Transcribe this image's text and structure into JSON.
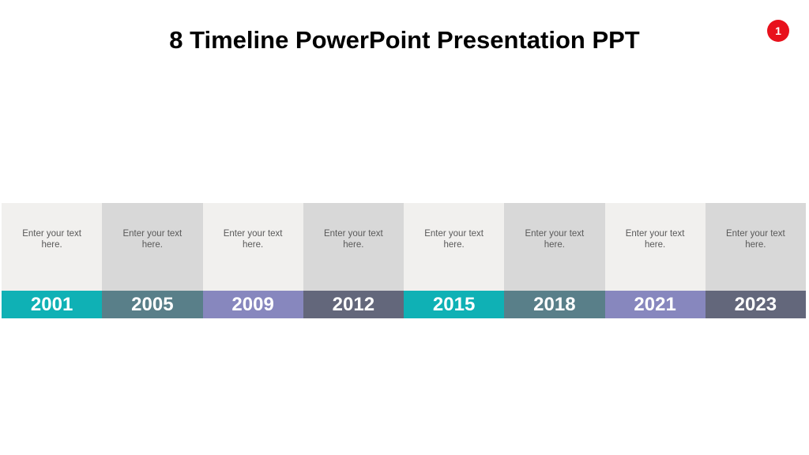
{
  "slide": {
    "title": "8 Timeline PowerPoint Presentation PPT",
    "badge": {
      "label": "1",
      "color": "#e8111c"
    }
  },
  "palette": {
    "teal": "#0fb1b5",
    "slate_teal": "#597f89",
    "purple": "#8787be",
    "dark_slate": "#63677b",
    "body_light": "#f1f0ee",
    "body_dark": "#d8d8d8",
    "placeholder_text": "#595959"
  },
  "timeline": {
    "items": [
      {
        "year": "2001",
        "text": "Enter your text here.",
        "bar_color": "#0fb1b5",
        "body_color": "#f1f0ee"
      },
      {
        "year": "2005",
        "text": "Enter your text here.",
        "bar_color": "#597f89",
        "body_color": "#d8d8d8"
      },
      {
        "year": "2009",
        "text": "Enter your text here.",
        "bar_color": "#8787be",
        "body_color": "#f1f0ee"
      },
      {
        "year": "2012",
        "text": "Enter your text here.",
        "bar_color": "#63677b",
        "body_color": "#d8d8d8"
      },
      {
        "year": "2015",
        "text": "Enter your text here.",
        "bar_color": "#0fb1b5",
        "body_color": "#f1f0ee"
      },
      {
        "year": "2018",
        "text": "Enter your text here.",
        "bar_color": "#597f89",
        "body_color": "#d8d8d8"
      },
      {
        "year": "2021",
        "text": "Enter your text here.",
        "bar_color": "#8787be",
        "body_color": "#f1f0ee"
      },
      {
        "year": "2023",
        "text": "Enter your text here.",
        "bar_color": "#63677b",
        "body_color": "#d8d8d8"
      }
    ]
  }
}
